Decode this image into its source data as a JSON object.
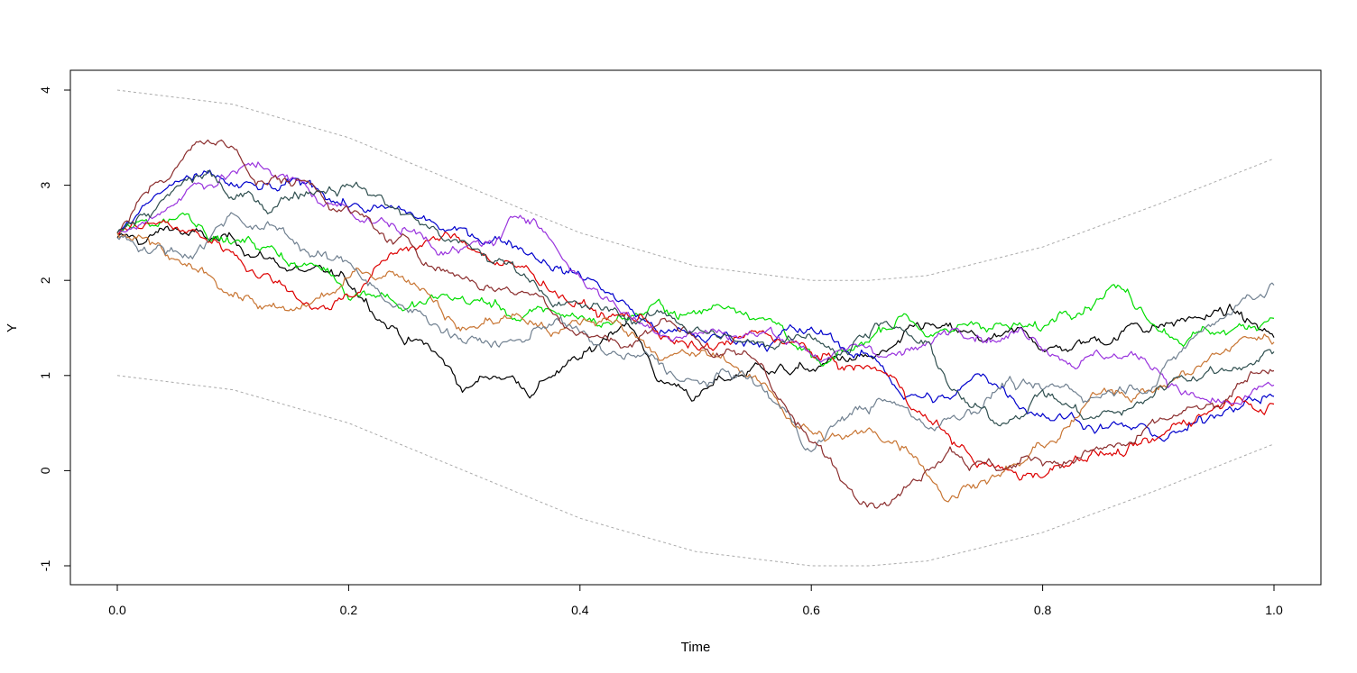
{
  "chart_data": {
    "type": "line",
    "title": "",
    "xlabel": "Time",
    "ylabel": "Y",
    "xlim": [
      0,
      1
    ],
    "ylim": [
      -1,
      4
    ],
    "x_ticks": [
      0,
      0.2,
      0.4,
      0.6,
      0.8,
      1
    ],
    "x_tick_labels": [
      "0.0",
      "0.2",
      "0.4",
      "0.6",
      "0.8",
      "1.0"
    ],
    "y_ticks": [
      -1,
      0,
      1,
      2,
      3,
      4
    ],
    "y_tick_labels": [
      "-1",
      "0",
      "1",
      "2",
      "3",
      "4"
    ],
    "grid": false,
    "legend": "none",
    "boundaries": {
      "color": "#aaaaaa",
      "style": "dashed",
      "upper": {
        "x": [
          0,
          0.1,
          0.2,
          0.3,
          0.4,
          0.5,
          0.6,
          0.65,
          0.7,
          0.8,
          0.9,
          1.0
        ],
        "y": [
          4.0,
          3.85,
          3.5,
          3.0,
          2.5,
          2.15,
          2.0,
          2.0,
          2.05,
          2.35,
          2.8,
          3.28
        ]
      },
      "lower": {
        "x": [
          0,
          0.1,
          0.2,
          0.3,
          0.4,
          0.5,
          0.6,
          0.65,
          0.7,
          0.8,
          0.9,
          1.0
        ],
        "y": [
          1.0,
          0.85,
          0.5,
          0.0,
          -0.5,
          -0.85,
          -1.0,
          -1.0,
          -0.95,
          -0.65,
          -0.2,
          0.28
        ]
      }
    },
    "series": [
      {
        "color": "#000000",
        "x": [
          0,
          0.02,
          0.05,
          0.08,
          0.12,
          0.16,
          0.2,
          0.24,
          0.27,
          0.3,
          0.33,
          0.36,
          0.38,
          0.41,
          0.44,
          0.47,
          0.5,
          0.53,
          0.56,
          0.6,
          0.63,
          0.66,
          0.7,
          0.74,
          0.78,
          0.81,
          0.85,
          0.88,
          0.92,
          0.96,
          1.0
        ],
        "y": [
          2.45,
          2.38,
          2.55,
          2.42,
          2.25,
          2.1,
          1.95,
          1.5,
          1.3,
          0.85,
          0.98,
          0.8,
          1.05,
          1.25,
          1.55,
          0.95,
          0.78,
          0.95,
          1.05,
          1.05,
          1.15,
          1.25,
          1.55,
          1.45,
          1.5,
          1.3,
          1.35,
          1.55,
          1.6,
          1.7,
          1.4
        ]
      },
      {
        "color": "#00dd00",
        "x": [
          0,
          0.03,
          0.06,
          0.1,
          0.14,
          0.18,
          0.2,
          0.23,
          0.25,
          0.28,
          0.32,
          0.35,
          0.38,
          0.42,
          0.46,
          0.5,
          0.55,
          0.58,
          0.61,
          0.64,
          0.68,
          0.72,
          0.76,
          0.8,
          0.83,
          0.86,
          0.88,
          0.91,
          0.95,
          0.98,
          1.0
        ],
        "y": [
          2.5,
          2.58,
          2.7,
          2.4,
          2.25,
          2.1,
          1.8,
          1.85,
          1.7,
          1.85,
          1.75,
          1.6,
          1.65,
          1.55,
          1.72,
          1.65,
          1.6,
          1.38,
          1.1,
          1.3,
          1.65,
          1.45,
          1.55,
          1.5,
          1.65,
          1.95,
          1.7,
          1.4,
          1.45,
          1.5,
          1.6
        ]
      },
      {
        "color": "#0000cc",
        "x": [
          0,
          0.03,
          0.06,
          0.1,
          0.14,
          0.18,
          0.22,
          0.26,
          0.3,
          0.34,
          0.38,
          0.42,
          0.46,
          0.5,
          0.54,
          0.58,
          0.62,
          0.65,
          0.68,
          0.72,
          0.75,
          0.78,
          0.82,
          0.86,
          0.9,
          0.94,
          0.97,
          1.0
        ],
        "y": [
          2.5,
          2.85,
          3.1,
          3.0,
          2.95,
          2.85,
          2.75,
          2.65,
          2.55,
          2.4,
          2.15,
          1.9,
          1.55,
          1.4,
          1.35,
          1.5,
          1.35,
          1.2,
          0.75,
          0.75,
          1.0,
          0.65,
          0.55,
          0.5,
          0.35,
          0.5,
          0.65,
          0.78
        ]
      },
      {
        "color": "#dd0000",
        "x": [
          0,
          0.03,
          0.06,
          0.1,
          0.14,
          0.18,
          0.22,
          0.25,
          0.28,
          0.31,
          0.35,
          0.38,
          0.42,
          0.46,
          0.5,
          0.54,
          0.58,
          0.62,
          0.66,
          0.7,
          0.74,
          0.78,
          0.81,
          0.84,
          0.87,
          0.9,
          0.94,
          0.98,
          1.0
        ],
        "y": [
          2.5,
          2.6,
          2.5,
          2.3,
          2.0,
          1.7,
          2.05,
          2.35,
          2.45,
          2.3,
          2.15,
          1.85,
          1.65,
          1.55,
          1.3,
          1.4,
          1.35,
          1.15,
          1.05,
          0.55,
          0.1,
          -0.1,
          0.05,
          0.15,
          0.15,
          0.35,
          0.6,
          0.7,
          0.7
        ]
      },
      {
        "color": "#9933dd",
        "x": [
          0,
          0.03,
          0.06,
          0.1,
          0.14,
          0.18,
          0.22,
          0.26,
          0.3,
          0.33,
          0.36,
          0.39,
          0.42,
          0.46,
          0.5,
          0.54,
          0.58,
          0.62,
          0.66,
          0.7,
          0.74,
          0.78,
          0.82,
          0.86,
          0.9,
          0.94,
          0.97,
          1.0
        ],
        "y": [
          2.5,
          2.65,
          2.95,
          3.15,
          3.1,
          2.8,
          2.6,
          2.5,
          2.35,
          2.45,
          2.65,
          2.15,
          1.8,
          1.5,
          1.45,
          1.4,
          1.35,
          1.25,
          1.2,
          1.35,
          1.4,
          1.5,
          1.15,
          1.2,
          1.05,
          0.75,
          0.7,
          0.9
        ]
      },
      {
        "color": "#c87533",
        "x": [
          0,
          0.03,
          0.06,
          0.08,
          0.12,
          0.15,
          0.18,
          0.21,
          0.24,
          0.27,
          0.3,
          0.34,
          0.38,
          0.42,
          0.46,
          0.5,
          0.54,
          0.58,
          0.61,
          0.65,
          0.69,
          0.72,
          0.75,
          0.78,
          0.82,
          0.86,
          0.9,
          0.94,
          0.98,
          1.0
        ],
        "y": [
          2.5,
          2.4,
          2.15,
          2.05,
          1.75,
          1.7,
          1.85,
          2.1,
          2.05,
          1.85,
          1.5,
          1.6,
          1.45,
          1.6,
          1.3,
          1.2,
          1.05,
          0.55,
          0.35,
          0.45,
          0.15,
          -0.3,
          -0.1,
          0.05,
          0.45,
          0.85,
          0.85,
          1.15,
          1.4,
          1.35
        ]
      },
      {
        "color": "#708090",
        "x": [
          0,
          0.03,
          0.06,
          0.1,
          0.14,
          0.18,
          0.22,
          0.25,
          0.28,
          0.31,
          0.35,
          0.38,
          0.42,
          0.46,
          0.5,
          0.54,
          0.57,
          0.6,
          0.63,
          0.66,
          0.7,
          0.73,
          0.77,
          0.8,
          0.84,
          0.88,
          0.92,
          0.96,
          1.0
        ],
        "y": [
          2.45,
          2.3,
          2.25,
          2.7,
          2.55,
          2.3,
          1.95,
          1.7,
          1.45,
          1.4,
          1.35,
          1.6,
          1.25,
          1.2,
          0.95,
          1.05,
          0.7,
          0.2,
          0.55,
          0.75,
          0.45,
          0.55,
          0.95,
          0.85,
          0.75,
          0.85,
          1.25,
          1.65,
          1.95
        ]
      },
      {
        "color": "#8b2d2d",
        "x": [
          0,
          0.03,
          0.06,
          0.08,
          0.1,
          0.12,
          0.16,
          0.2,
          0.24,
          0.28,
          0.32,
          0.36,
          0.4,
          0.44,
          0.48,
          0.52,
          0.56,
          0.6,
          0.63,
          0.66,
          0.69,
          0.72,
          0.76,
          0.8,
          0.84,
          0.88,
          0.92,
          0.96,
          1.0
        ],
        "y": [
          2.5,
          3.0,
          3.35,
          3.45,
          3.4,
          3.0,
          3.05,
          2.75,
          2.4,
          2.1,
          1.95,
          1.85,
          1.45,
          1.3,
          1.55,
          1.2,
          1.05,
          0.3,
          -0.15,
          -0.35,
          -0.1,
          0.25,
          0.0,
          0.05,
          0.2,
          0.3,
          0.6,
          0.75,
          1.05
        ]
      },
      {
        "color": "#2f4f4f",
        "x": [
          0,
          0.03,
          0.06,
          0.08,
          0.1,
          0.13,
          0.16,
          0.2,
          0.24,
          0.28,
          0.32,
          0.36,
          0.4,
          0.44,
          0.48,
          0.52,
          0.56,
          0.6,
          0.63,
          0.66,
          0.7,
          0.73,
          0.76,
          0.8,
          0.84,
          0.88,
          0.92,
          0.96,
          1.0
        ],
        "y": [
          2.5,
          2.7,
          3.05,
          3.15,
          2.85,
          2.7,
          2.9,
          3.0,
          2.75,
          2.45,
          2.2,
          2.0,
          1.75,
          1.55,
          1.6,
          1.4,
          1.3,
          1.4,
          1.25,
          1.55,
          1.35,
          0.75,
          0.5,
          0.85,
          0.55,
          0.7,
          1.0,
          1.05,
          1.25
        ]
      }
    ]
  }
}
